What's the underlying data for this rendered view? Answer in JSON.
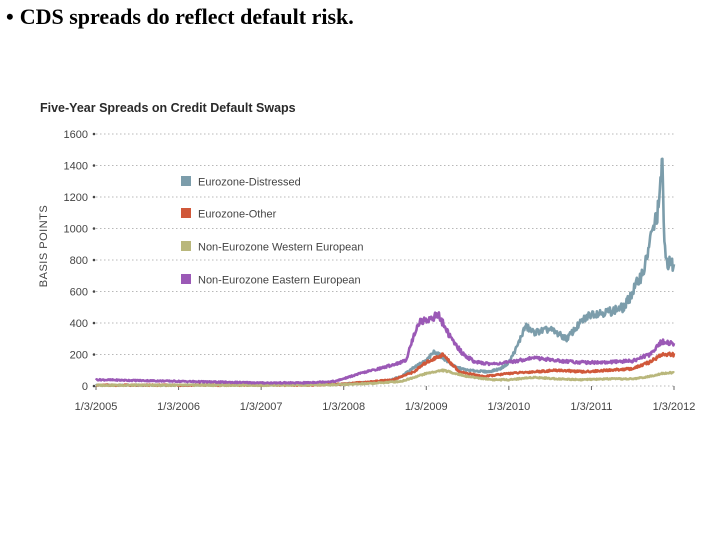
{
  "slide": {
    "bullet_symbol": "•",
    "bullet_text": "CDS spreads do reflect default risk."
  },
  "chart_data": {
    "type": "line",
    "title": "Five-Year Spreads on Credit Default Swaps",
    "xlabel": "",
    "ylabel": "BASIS POINTS",
    "ylim": [
      0,
      1600
    ],
    "yticks": [
      0,
      200,
      400,
      600,
      800,
      1000,
      1200,
      1400,
      1600
    ],
    "yticklabels": [
      "0",
      "200",
      "400",
      "600",
      "800",
      "1000",
      "1200",
      "1400",
      "1600"
    ],
    "xlim": [
      2005.0,
      2012.0
    ],
    "xticks": [
      2005,
      2006,
      2007,
      2008,
      2009,
      2010,
      2011,
      2012
    ],
    "xticklabels": [
      "1/3/2005",
      "1/3/2006",
      "1/3/2007",
      "1/3/2008",
      "1/3/2009",
      "1/3/2010",
      "1/3/2011",
      "1/3/2012"
    ],
    "grid": true,
    "legend_position": "top-left",
    "series": [
      {
        "name": "Eurozone-Distressed",
        "color": "#7c9dab",
        "x": [
          2005.0,
          2005.5,
          2006.0,
          2006.5,
          2007.0,
          2007.5,
          2007.9,
          2008.2,
          2008.5,
          2008.7,
          2008.85,
          2009.0,
          2009.1,
          2009.2,
          2009.35,
          2009.5,
          2009.75,
          2009.9,
          2010.0,
          2010.1,
          2010.2,
          2010.3,
          2010.5,
          2010.7,
          2010.9,
          2011.0,
          2011.2,
          2011.4,
          2011.5,
          2011.6,
          2011.65,
          2011.7,
          2011.75,
          2011.8,
          2011.83,
          2011.86,
          2011.88,
          2011.9,
          2011.95,
          2012.0
        ],
        "values": [
          5,
          5,
          5,
          8,
          8,
          8,
          10,
          20,
          30,
          60,
          120,
          160,
          220,
          180,
          120,
          100,
          90,
          110,
          150,
          250,
          380,
          340,
          360,
          300,
          420,
          460,
          470,
          500,
          600,
          700,
          760,
          900,
          1000,
          1100,
          1200,
          1480,
          900,
          800,
          780,
          760
        ]
      },
      {
        "name": "Eurozone-Other",
        "color": "#d0583a",
        "x": [
          2005.0,
          2006.0,
          2007.0,
          2007.5,
          2007.9,
          2008.3,
          2008.6,
          2008.85,
          2009.0,
          2009.2,
          2009.4,
          2009.7,
          2010.0,
          2010.3,
          2010.6,
          2010.9,
          2011.2,
          2011.5,
          2011.7,
          2011.85,
          2012.0
        ],
        "values": [
          5,
          5,
          5,
          5,
          10,
          25,
          40,
          90,
          150,
          200,
          90,
          60,
          80,
          90,
          100,
          90,
          100,
          110,
          150,
          200,
          200
        ]
      },
      {
        "name": "Non-Eurozone Western European",
        "color": "#b9b77c",
        "x": [
          2005.0,
          2006.0,
          2007.0,
          2007.9,
          2008.3,
          2008.7,
          2009.0,
          2009.2,
          2009.5,
          2009.8,
          2010.0,
          2010.3,
          2010.6,
          2010.9,
          2011.2,
          2011.5,
          2011.7,
          2011.85,
          2012.0
        ],
        "values": [
          5,
          5,
          5,
          8,
          15,
          30,
          80,
          100,
          60,
          40,
          40,
          55,
          45,
          40,
          45,
          45,
          60,
          80,
          85
        ]
      },
      {
        "name": "Non-Eurozone Eastern European",
        "color": "#9b59b6",
        "x": [
          2005.0,
          2005.5,
          2006.0,
          2006.5,
          2007.0,
          2007.5,
          2007.9,
          2008.2,
          2008.5,
          2008.75,
          2008.9,
          2009.0,
          2009.15,
          2009.3,
          2009.45,
          2009.6,
          2009.8,
          2010.0,
          2010.3,
          2010.6,
          2010.9,
          2011.2,
          2011.5,
          2011.7,
          2011.85,
          2012.0
        ],
        "values": [
          40,
          35,
          30,
          25,
          20,
          20,
          30,
          80,
          120,
          160,
          400,
          420,
          450,
          300,
          200,
          150,
          140,
          150,
          180,
          160,
          150,
          150,
          160,
          200,
          280,
          270
        ]
      }
    ]
  }
}
